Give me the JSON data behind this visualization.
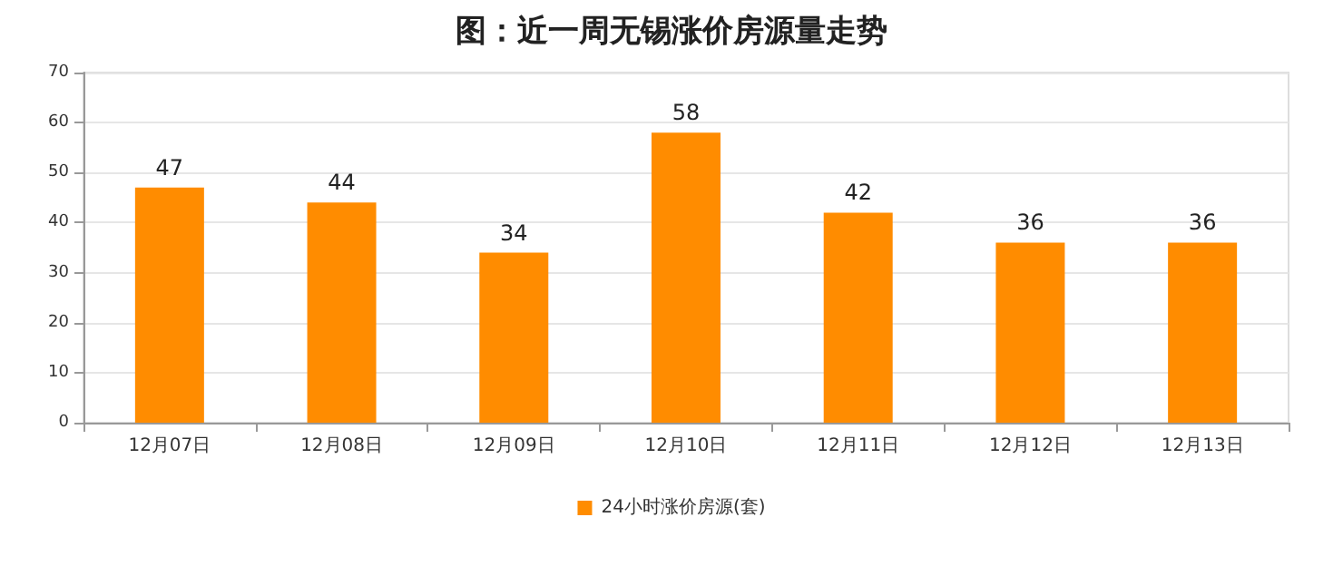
{
  "chart_data": {
    "type": "bar",
    "title": "图：近一周无锡涨价房源量走势",
    "categories": [
      "12月07日",
      "12月08日",
      "12月09日",
      "12月10日",
      "12月11日",
      "12月12日",
      "12月13日"
    ],
    "series": [
      {
        "name": "24小时涨价房源(套)",
        "color": "#ff8c00",
        "values": [
          47,
          44,
          34,
          58,
          42,
          36,
          36
        ]
      }
    ],
    "ylim": [
      0,
      70
    ],
    "yticks": [
      0,
      10,
      20,
      30,
      40,
      50,
      60,
      70
    ],
    "grid": "y",
    "legend": "bottom",
    "data_labels": true
  }
}
